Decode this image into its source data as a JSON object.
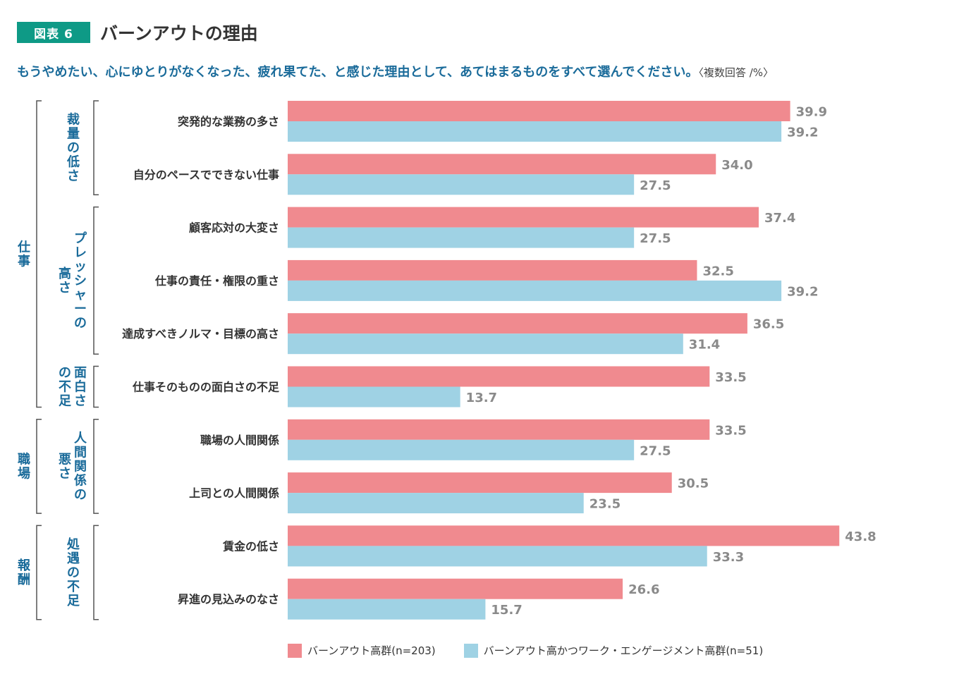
{
  "figure_label": "図表 6",
  "title": "バーンアウトの理由",
  "subtitle": "もうやめたい、心にゆとりがなくなった、疲れ果てた、と感じた理由として、あてはまるものをすべて選んでください。",
  "subtitle_note": "〈複数回答 /%〉",
  "colors": {
    "series1": "#f08a8f",
    "series2": "#9fd2e4",
    "label": "#8a8a8a",
    "bracket": "#555555"
  },
  "chart_data": {
    "type": "bar",
    "orientation": "horizontal",
    "title": "バーンアウトの理由",
    "xlim": [
      0,
      45
    ],
    "categories": [
      "突発的な業務の多さ",
      "自分のペースでできない仕事",
      "顧客応対の大変さ",
      "仕事の責任・権限の重さ",
      "達成すべきノルマ・目標の高さ",
      "仕事そのものの面白さの不足",
      "職場の人間関係",
      "上司との人間関係",
      "賃金の低さ",
      "昇進の見込みのなさ"
    ],
    "series": [
      {
        "name": "バーンアウト高群(n=203)",
        "values": [
          39.9,
          34.0,
          37.4,
          32.5,
          36.5,
          33.5,
          33.5,
          30.5,
          43.8,
          26.6
        ]
      },
      {
        "name": "バーンアウト高かつワーク・エンゲージメント高群(n=51)",
        "values": [
          39.2,
          27.5,
          27.5,
          39.2,
          31.4,
          13.7,
          27.5,
          23.5,
          33.3,
          15.7
        ]
      }
    ],
    "subgroups": [
      {
        "label": "裁量の低さ",
        "lines": [
          "裁量の低さ"
        ],
        "from": 0,
        "to": 1
      },
      {
        "label": "プレッシャーの高さ",
        "lines": [
          "プレッシャーの",
          "高さ"
        ],
        "from": 2,
        "to": 4
      },
      {
        "label": "面白さの不足",
        "lines": [
          "面白さ",
          "の不足"
        ],
        "from": 5,
        "to": 5
      },
      {
        "label": "人間関係の悪さ",
        "lines": [
          "人間関係の",
          "悪さ"
        ],
        "from": 6,
        "to": 7
      },
      {
        "label": "処遇の不足",
        "lines": [
          "処遇の不足"
        ],
        "from": 8,
        "to": 9
      }
    ],
    "groups": [
      {
        "label": "仕事",
        "from": 0,
        "to": 5
      },
      {
        "label": "職場",
        "from": 6,
        "to": 7
      },
      {
        "label": "報酬",
        "from": 8,
        "to": 9
      }
    ]
  }
}
